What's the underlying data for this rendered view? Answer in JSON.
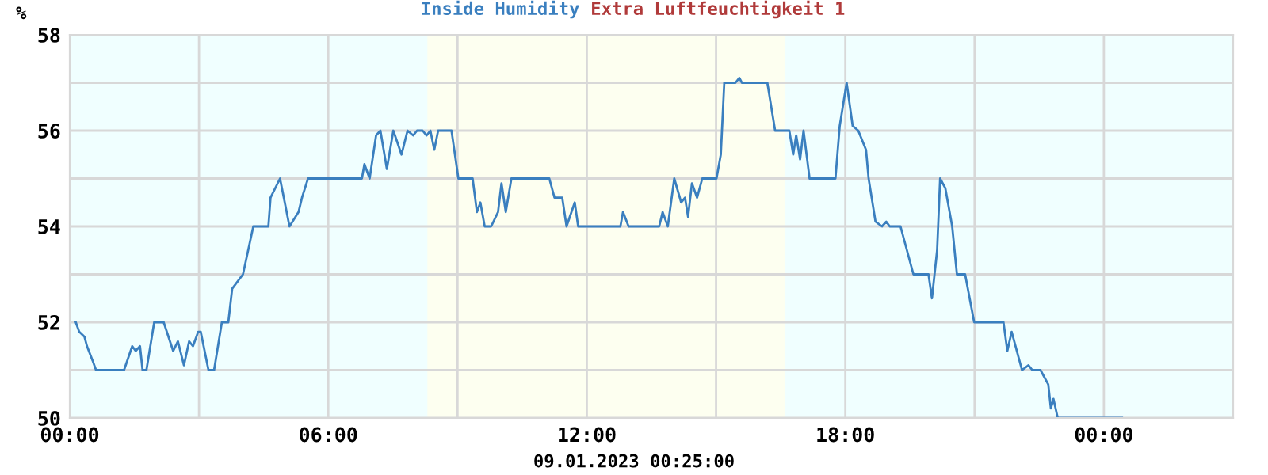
{
  "chart_data": {
    "type": "line",
    "ylabel": "%",
    "legend": "top",
    "grid": true,
    "xlim": [
      0,
      27
    ],
    "xticks": [
      {
        "value": 0,
        "label": "00:00"
      },
      {
        "value": 3,
        "label": null
      },
      {
        "value": 6,
        "label": "06:00"
      },
      {
        "value": 9,
        "label": null
      },
      {
        "value": 12,
        "label": "12:00"
      },
      {
        "value": 15,
        "label": null
      },
      {
        "value": 18,
        "label": "18:00"
      },
      {
        "value": 21,
        "label": null
      },
      {
        "value": 24,
        "label": "00:00"
      },
      {
        "value": 27,
        "label": null
      }
    ],
    "ylim": [
      50,
      58
    ],
    "yticks": [
      50,
      {
        "value": 51,
        "label": null
      },
      52,
      {
        "value": 53,
        "label": null
      },
      54,
      {
        "value": 55,
        "label": null
      },
      56,
      {
        "value": 57,
        "label": null
      },
      58
    ],
    "bands": [
      {
        "axis": "x",
        "from": 8.3,
        "to": 16.6,
        "label": null,
        "color": "#fdfff0"
      }
    ],
    "annotations": [
      "09.01.2023 00:25:00"
    ],
    "series": [
      {
        "name": "Inside Humidity",
        "color": "#3a7fbf",
        "x": [
          0.14,
          0.22,
          0.34,
          0.4,
          0.53,
          0.61,
          1.26,
          1.45,
          1.53,
          1.63,
          1.69,
          1.78,
          1.96,
          2.18,
          2.4,
          2.51,
          2.65,
          2.77,
          2.86,
          2.98,
          3.04,
          3.22,
          3.35,
          3.53,
          3.68,
          3.77,
          4.02,
          4.26,
          4.61,
          4.66,
          4.88,
          5.1,
          5.31,
          5.39,
          5.53,
          6.78,
          6.84,
          6.96,
          7.11,
          7.21,
          7.36,
          7.51,
          7.7,
          7.84,
          7.97,
          8.06,
          8.19,
          8.28,
          8.37,
          8.46,
          8.55,
          8.86,
          9.02,
          9.35,
          9.45,
          9.53,
          9.63,
          9.78,
          9.94,
          10.02,
          10.12,
          10.25,
          11.13,
          11.25,
          11.43,
          11.53,
          11.72,
          11.8,
          12.78,
          12.84,
          12.97,
          13.68,
          13.76,
          13.88,
          14.03,
          14.19,
          14.28,
          14.35,
          14.44,
          14.56,
          14.68,
          15.01,
          15.11,
          15.19,
          15.45,
          15.54,
          15.6,
          16.19,
          16.37,
          16.7,
          16.79,
          16.86,
          16.95,
          17.03,
          17.17,
          17.77,
          17.87,
          18.03,
          18.17,
          18.3,
          18.48,
          18.54,
          18.7,
          18.85,
          18.95,
          19.03,
          19.28,
          19.58,
          19.93,
          20.01,
          20.13,
          20.2,
          20.32,
          20.48,
          20.59,
          20.78,
          20.99,
          21.67,
          21.76,
          21.86,
          22.1,
          22.25,
          22.34,
          22.53,
          22.71,
          22.77,
          22.83,
          22.93,
          24.42
        ],
        "values": [
          52.0,
          51.8,
          51.7,
          51.5,
          51.2,
          51.0,
          51.0,
          51.5,
          51.4,
          51.5,
          51.0,
          51.0,
          52.0,
          52.0,
          51.4,
          51.6,
          51.1,
          51.6,
          51.5,
          51.8,
          51.8,
          51.0,
          51.0,
          52.0,
          52.0,
          52.7,
          53.0,
          54.0,
          54.0,
          54.6,
          55.0,
          54.0,
          54.3,
          54.6,
          55.0,
          55.0,
          55.3,
          55.0,
          55.9,
          56.0,
          55.2,
          56.0,
          55.5,
          56.0,
          55.9,
          56.0,
          56.0,
          55.9,
          56.0,
          55.6,
          56.0,
          56.0,
          55.0,
          55.0,
          54.3,
          54.5,
          54.0,
          54.0,
          54.3,
          54.9,
          54.3,
          55.0,
          55.0,
          54.6,
          54.6,
          54.0,
          54.5,
          54.0,
          54.0,
          54.3,
          54.0,
          54.0,
          54.3,
          54.0,
          55.0,
          54.5,
          54.6,
          54.2,
          54.9,
          54.6,
          55.0,
          55.0,
          55.5,
          57.0,
          57.0,
          57.1,
          57.0,
          57.0,
          56.0,
          56.0,
          55.5,
          55.9,
          55.4,
          56.0,
          55.0,
          55.0,
          56.1,
          57.0,
          56.1,
          56.0,
          55.6,
          55.0,
          54.1,
          54.0,
          54.1,
          54.0,
          54.0,
          53.0,
          53.0,
          52.5,
          53.5,
          55.0,
          54.8,
          54.0,
          53.0,
          53.0,
          52.0,
          52.0,
          51.4,
          51.8,
          51.0,
          51.1,
          51.0,
          51.0,
          50.7,
          50.2,
          50.4,
          50.0,
          50.0
        ]
      },
      {
        "name": "Extra Luftfeuchtigkeit 1",
        "color": "#b03a3a"
      }
    ]
  }
}
